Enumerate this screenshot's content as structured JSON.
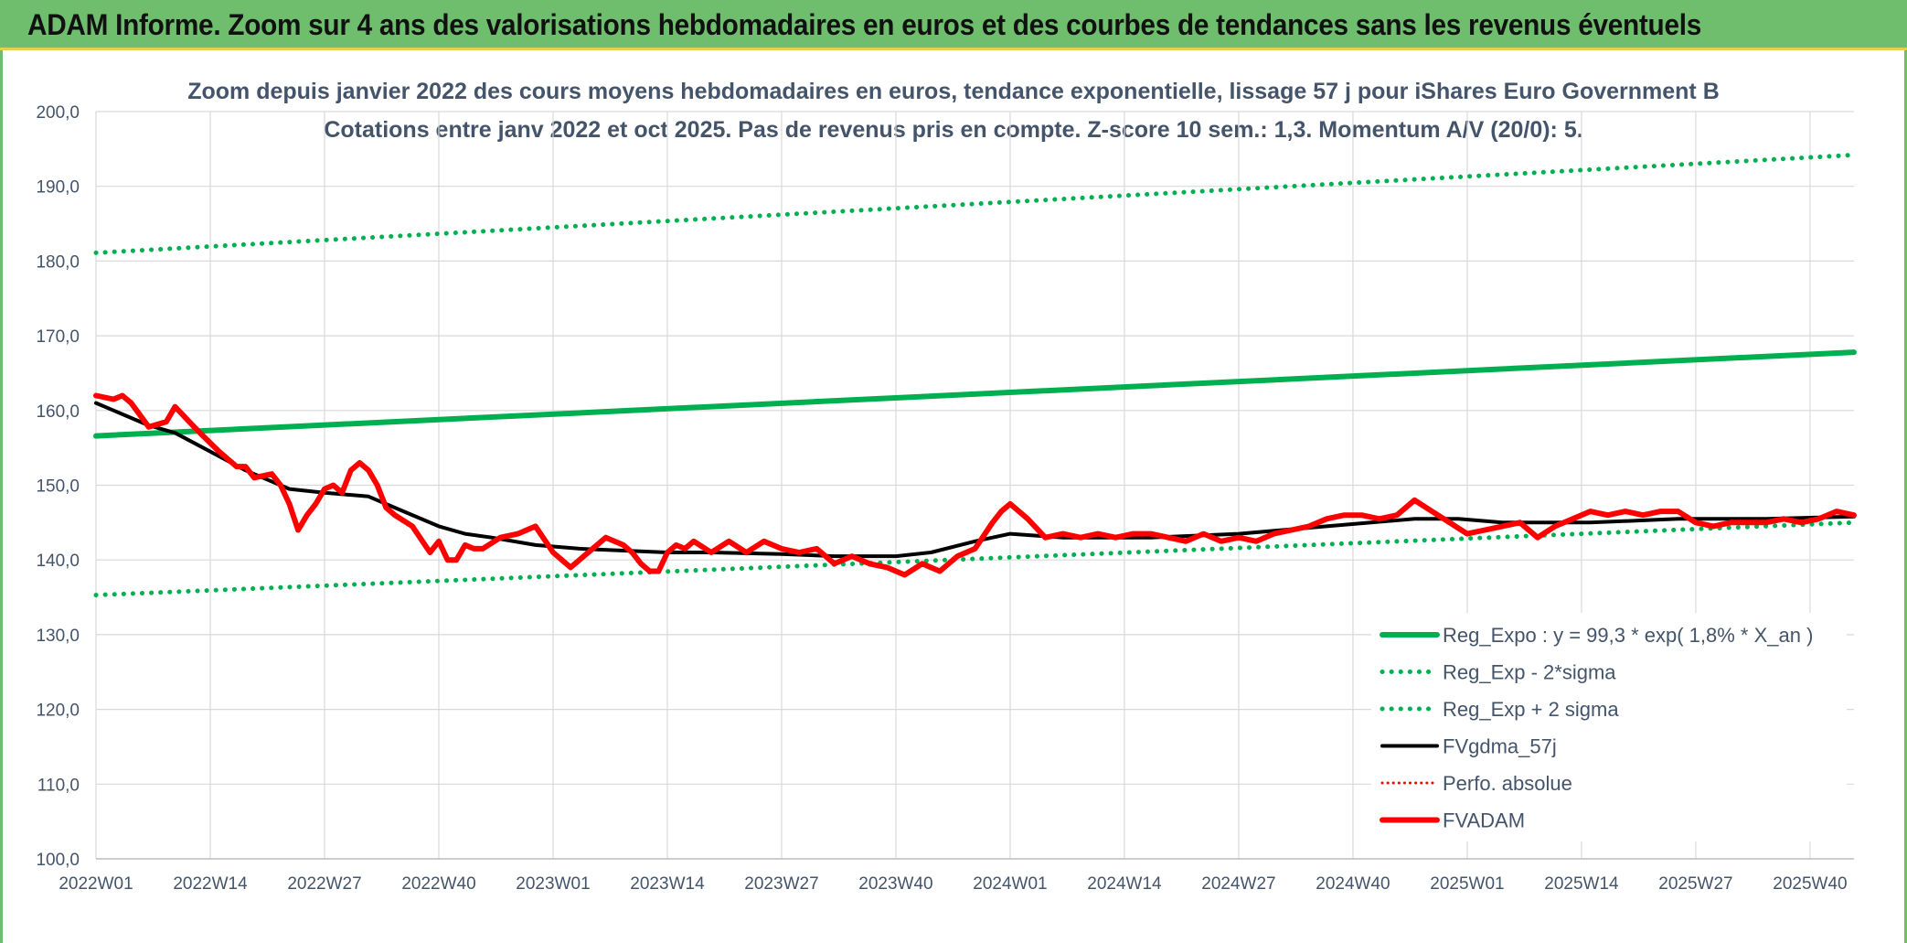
{
  "banner": {
    "title": "ADAM Informe. Zoom sur 4 ans des valorisations hebdomadaires en euros et des courbes de tendances sans les revenus éventuels"
  },
  "colors": {
    "banner": "#6fbe6e",
    "reg_expo": "#00b050",
    "sigma": "#00b050",
    "fvgdma": "#000000",
    "perfo": "#ff0000",
    "fvadam": "#ff0000",
    "grid": "#d9d9d9",
    "text": "#44546a"
  },
  "chart_data": {
    "type": "line",
    "title": "Zoom depuis janvier 2022 des cours moyens hebdomadaires en euros, tendance exponentielle, lissage 57 j pour iShares Euro Government B",
    "subtitle": "Cotations entre janv 2022 et oct 2025. Pas de revenus pris en compte. Z-score 10 sem.: 1,3. Momentum A/V (20/0): 5.",
    "xlabel": "",
    "ylabel": "",
    "ylim": [
      100,
      200
    ],
    "yticks": [
      "100,0",
      "110,0",
      "120,0",
      "130,0",
      "140,0",
      "150,0",
      "160,0",
      "170,0",
      "180,0",
      "190,0",
      "200,0"
    ],
    "x_tick_labels": [
      "2022W01",
      "2022W14",
      "2022W27",
      "2022W40",
      "2023W01",
      "2023W14",
      "2023W27",
      "2023W40",
      "2024W01",
      "2024W14",
      "2024W27",
      "2024W40",
      "2025W01",
      "2025W14",
      "2025W27",
      "2025W40"
    ],
    "x_tick_index": [
      0,
      13,
      26,
      39,
      52,
      65,
      78,
      91,
      104,
      117,
      130,
      143,
      156,
      169,
      182,
      195
    ],
    "grid": true,
    "legend_position": "bottom-right",
    "series": [
      {
        "name": "Reg_Expo : y = 99,3 * exp( 1,8% *  X_an )",
        "style": "solid-thick",
        "x": [
          0,
          200
        ],
        "y": [
          156.6,
          167.8
        ]
      },
      {
        "name": "Reg_Exp - 2*sigma",
        "style": "dotted",
        "x": [
          0,
          200
        ],
        "y": [
          135.3,
          145.0
        ]
      },
      {
        "name": "Reg_Exp + 2 sigma",
        "style": "dotted",
        "x": [
          0,
          200
        ],
        "y": [
          181.1,
          194.2
        ]
      },
      {
        "name": "FVgdma_57j",
        "style": "solid",
        "x": [
          0,
          6,
          9,
          13,
          17,
          22,
          26,
          31,
          35,
          39,
          42,
          45,
          50,
          55,
          61,
          65,
          70,
          78,
          84,
          88,
          91,
          95,
          100,
          104,
          110,
          120,
          130,
          140,
          150,
          155,
          160,
          170,
          180,
          190,
          200
        ],
        "y": [
          161.0,
          158.0,
          157.0,
          154.5,
          152.0,
          149.5,
          149.0,
          148.5,
          146.5,
          144.5,
          143.5,
          143.0,
          142.0,
          141.5,
          141.2,
          141.0,
          141.0,
          140.8,
          140.5,
          140.5,
          140.5,
          141.0,
          142.5,
          143.5,
          143.0,
          143.0,
          143.5,
          144.5,
          145.5,
          145.5,
          145.0,
          145.0,
          145.5,
          145.5,
          145.8
        ]
      },
      {
        "name": "Perfo. absolue",
        "style": "dotted",
        "x": [],
        "y": []
      },
      {
        "name": "FVADAM",
        "style": "solid-thick",
        "x": [
          0,
          2,
          3,
          4,
          6,
          8,
          9,
          11,
          12,
          14,
          15,
          16,
          17,
          18,
          20,
          21,
          22,
          23,
          24,
          25,
          26,
          27,
          28,
          29,
          30,
          31,
          32,
          33,
          34,
          36,
          38,
          39,
          40,
          41,
          42,
          43,
          44,
          46,
          48,
          50,
          52,
          54,
          56,
          58,
          60,
          61,
          62,
          63,
          64,
          65,
          66,
          67,
          68,
          70,
          72,
          74,
          76,
          78,
          80,
          82,
          84,
          86,
          88,
          90,
          91,
          92,
          94,
          96,
          98,
          100,
          102,
          103,
          104,
          106,
          108,
          110,
          112,
          114,
          116,
          118,
          120,
          122,
          124,
          126,
          128,
          130,
          132,
          134,
          136,
          138,
          140,
          142,
          144,
          146,
          148,
          150,
          152,
          154,
          156,
          158,
          160,
          162,
          164,
          166,
          168,
          170,
          172,
          174,
          176,
          178,
          180,
          182,
          184,
          186,
          188,
          190,
          192,
          194,
          196,
          198,
          200
        ],
        "y": [
          162.0,
          161.5,
          162.0,
          161.0,
          157.8,
          158.5,
          160.5,
          158.0,
          156.8,
          154.5,
          153.5,
          152.5,
          152.5,
          151.0,
          151.5,
          150.0,
          147.5,
          144.0,
          146.0,
          147.5,
          149.5,
          150.0,
          149.0,
          152.0,
          153.0,
          152.0,
          150.0,
          147.0,
          146.0,
          144.5,
          141.0,
          142.5,
          140.0,
          140.0,
          142.0,
          141.5,
          141.5,
          143.0,
          143.5,
          144.5,
          141.0,
          139.0,
          141.0,
          143.0,
          142.0,
          141.0,
          139.5,
          138.5,
          138.5,
          141.0,
          142.0,
          141.5,
          142.5,
          141.0,
          142.5,
          141.0,
          142.5,
          141.5,
          141.0,
          141.5,
          139.5,
          140.5,
          139.5,
          139.0,
          138.5,
          138.0,
          139.5,
          138.5,
          140.5,
          141.5,
          145.0,
          146.5,
          147.5,
          145.5,
          143.0,
          143.5,
          143.0,
          143.5,
          143.0,
          143.5,
          143.5,
          143.0,
          142.5,
          143.5,
          142.5,
          143.0,
          142.5,
          143.5,
          144.0,
          144.5,
          145.5,
          146.0,
          146.0,
          145.5,
          146.0,
          148.0,
          146.5,
          145.0,
          143.5,
          144.0,
          144.5,
          145.0,
          143.0,
          144.5,
          145.5,
          146.5,
          146.0,
          146.5,
          146.0,
          146.5,
          146.5,
          145.0,
          144.5,
          145.0,
          145.0,
          145.0,
          145.5,
          145.0,
          145.5,
          146.5,
          146.0
        ]
      }
    ]
  }
}
